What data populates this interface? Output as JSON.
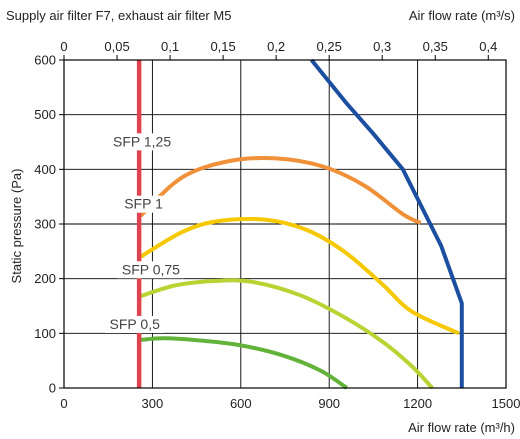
{
  "chart_data": {
    "type": "line",
    "title": "Supply air filter F7, exhaust air filter M5",
    "top_axis_label": "Air flow rate (m³/s)",
    "xlabel": "Air flow rate (m³/h)",
    "ylabel": "Static pressure (Pa)",
    "xlim": [
      0,
      1500
    ],
    "ylim": [
      0,
      600
    ],
    "x2lim": [
      0,
      0.4167
    ],
    "grid": true,
    "x_ticks": [
      "0",
      "300",
      "600",
      "900",
      "1200",
      "1500"
    ],
    "y_ticks": [
      "0",
      "100",
      "200",
      "300",
      "400",
      "500",
      "600"
    ],
    "top_ticks": [
      "0",
      "0,05",
      "0,1",
      "0,15",
      "0,2",
      "0,25",
      "0,3",
      "0,35",
      "0,4"
    ],
    "series": [
      {
        "name": "SFP 1,25",
        "color": "#f0913a",
        "points": [
          [
            260,
            315
          ],
          [
            400,
            385
          ],
          [
            560,
            415
          ],
          [
            720,
            420
          ],
          [
            880,
            405
          ],
          [
            1020,
            370
          ],
          [
            1150,
            318
          ],
          [
            1210,
            302
          ]
        ]
      },
      {
        "name": "SFP 1",
        "color": "#f5c800",
        "points": [
          [
            260,
            240
          ],
          [
            400,
            285
          ],
          [
            520,
            305
          ],
          [
            680,
            308
          ],
          [
            820,
            290
          ],
          [
            950,
            250
          ],
          [
            1080,
            190
          ],
          [
            1180,
            140
          ],
          [
            1340,
            100
          ]
        ]
      },
      {
        "name": "SFP 0,75",
        "color": "#b7d433",
        "points": [
          [
            260,
            168
          ],
          [
            380,
            188
          ],
          [
            520,
            196
          ],
          [
            640,
            194
          ],
          [
            800,
            170
          ],
          [
            950,
            130
          ],
          [
            1080,
            85
          ],
          [
            1180,
            40
          ],
          [
            1250,
            0
          ]
        ]
      },
      {
        "name": "SFP 0,5",
        "color": "#63b23a",
        "points": [
          [
            260,
            88
          ],
          [
            340,
            91
          ],
          [
            460,
            87
          ],
          [
            600,
            78
          ],
          [
            740,
            60
          ],
          [
            870,
            32
          ],
          [
            960,
            0
          ]
        ]
      },
      {
        "name": "",
        "color": "#1d4fa0",
        "points": [
          [
            840,
            600
          ],
          [
            960,
            520
          ],
          [
            1050,
            465
          ],
          [
            1150,
            400
          ],
          [
            1280,
            260
          ],
          [
            1350,
            155
          ],
          [
            1350,
            0
          ]
        ]
      },
      {
        "name": "",
        "color": "#e04350",
        "points": [
          [
            255,
            600
          ],
          [
            255,
            0
          ]
        ]
      }
    ]
  }
}
